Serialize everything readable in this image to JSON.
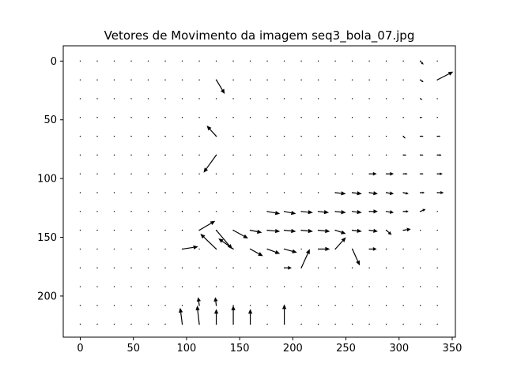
{
  "chart_data": {
    "type": "quiver",
    "title": "Vetores de Movimento da imagem seq3_bola_07.jpg",
    "xlabel": "",
    "ylabel": "",
    "xlim": [
      -16,
      353
    ],
    "ylim": [
      235,
      -13
    ],
    "y_inverted": true,
    "xticks": [
      0,
      50,
      100,
      150,
      200,
      250,
      300,
      350
    ],
    "yticks": [
      0,
      50,
      100,
      150,
      200
    ],
    "grid": false,
    "legend": "none",
    "colors": {
      "arrow": "#000000",
      "dot": "#000000",
      "axes": "#000000"
    },
    "grid_points": {
      "x_start": 0,
      "x_step": 16,
      "x_count": 22,
      "y_start": 0,
      "y_step": 16,
      "y_count": 15
    },
    "vectors": [
      {
        "x": 128,
        "y": 16,
        "u": 8,
        "v": 12
      },
      {
        "x": 128,
        "y": 64,
        "u": -9,
        "v": -9
      },
      {
        "x": 128,
        "y": 80,
        "u": -12,
        "v": 15
      },
      {
        "x": 96,
        "y": 160,
        "u": 15,
        "v": -2
      },
      {
        "x": 112,
        "y": 144,
        "u": 15,
        "v": -8
      },
      {
        "x": 128,
        "y": 160,
        "u": -15,
        "v": -13
      },
      {
        "x": 128,
        "y": 144,
        "u": 15,
        "v": 16
      },
      {
        "x": 144,
        "y": 160,
        "u": -14,
        "v": -9
      },
      {
        "x": 144,
        "y": 144,
        "u": 14,
        "v": 7
      },
      {
        "x": 160,
        "y": 144,
        "u": 11,
        "v": 2
      },
      {
        "x": 160,
        "y": 160,
        "u": 12,
        "v": 6
      },
      {
        "x": 176,
        "y": 128,
        "u": 12,
        "v": 2
      },
      {
        "x": 176,
        "y": 144,
        "u": 12,
        "v": 1
      },
      {
        "x": 176,
        "y": 160,
        "u": 12,
        "v": 4
      },
      {
        "x": 192,
        "y": 128,
        "u": 11,
        "v": 2
      },
      {
        "x": 192,
        "y": 144,
        "u": 11,
        "v": 1
      },
      {
        "x": 192,
        "y": 160,
        "u": 12,
        "v": 3
      },
      {
        "x": 192,
        "y": 176,
        "u": 7,
        "v": 0
      },
      {
        "x": 208,
        "y": 128,
        "u": 11,
        "v": 1
      },
      {
        "x": 208,
        "y": 144,
        "u": 11,
        "v": 1
      },
      {
        "x": 208,
        "y": 176,
        "u": 8,
        "v": -16
      },
      {
        "x": 224,
        "y": 128,
        "u": 10,
        "v": 1
      },
      {
        "x": 224,
        "y": 144,
        "u": 11,
        "v": 1
      },
      {
        "x": 224,
        "y": 160,
        "u": 11,
        "v": 0
      },
      {
        "x": 240,
        "y": 112,
        "u": 10,
        "v": 1
      },
      {
        "x": 240,
        "y": 128,
        "u": 10,
        "v": 1
      },
      {
        "x": 240,
        "y": 144,
        "u": 10,
        "v": 3
      },
      {
        "x": 240,
        "y": 160,
        "u": 10,
        "v": -10
      },
      {
        "x": 256,
        "y": 112,
        "u": 9,
        "v": 1
      },
      {
        "x": 256,
        "y": 128,
        "u": 9,
        "v": 1
      },
      {
        "x": 256,
        "y": 144,
        "u": 9,
        "v": 1
      },
      {
        "x": 256,
        "y": 160,
        "u": 7,
        "v": 14
      },
      {
        "x": 272,
        "y": 96,
        "u": 7,
        "v": 0
      },
      {
        "x": 272,
        "y": 112,
        "u": 8,
        "v": 1
      },
      {
        "x": 272,
        "y": 128,
        "u": 8,
        "v": 0
      },
      {
        "x": 272,
        "y": 144,
        "u": 8,
        "v": 1
      },
      {
        "x": 272,
        "y": 160,
        "u": 7,
        "v": 0
      },
      {
        "x": 288,
        "y": 96,
        "u": 7,
        "v": 0
      },
      {
        "x": 288,
        "y": 112,
        "u": 7,
        "v": 1
      },
      {
        "x": 288,
        "y": 128,
        "u": 7,
        "v": 1
      },
      {
        "x": 288,
        "y": 144,
        "u": 5,
        "v": 4
      },
      {
        "x": 304,
        "y": 64,
        "u": 2,
        "v": 2
      },
      {
        "x": 304,
        "y": 80,
        "u": 3,
        "v": 0
      },
      {
        "x": 304,
        "y": 96,
        "u": 4,
        "v": 0
      },
      {
        "x": 304,
        "y": 112,
        "u": 5,
        "v": 1
      },
      {
        "x": 304,
        "y": 128,
        "u": 5,
        "v": 0
      },
      {
        "x": 304,
        "y": 144,
        "u": 7,
        "v": -1
      },
      {
        "x": 320,
        "y": 0,
        "u": 3,
        "v": 3
      },
      {
        "x": 320,
        "y": 16,
        "u": 3,
        "v": 2
      },
      {
        "x": 320,
        "y": 32,
        "u": 2,
        "v": 1
      },
      {
        "x": 320,
        "y": 48,
        "u": 2,
        "v": 0
      },
      {
        "x": 320,
        "y": 64,
        "u": 3,
        "v": 0
      },
      {
        "x": 320,
        "y": 80,
        "u": 3,
        "v": 0
      },
      {
        "x": 320,
        "y": 96,
        "u": 3,
        "v": 0
      },
      {
        "x": 320,
        "y": 112,
        "u": 4,
        "v": 0
      },
      {
        "x": 320,
        "y": 128,
        "u": 5,
        "v": -2
      },
      {
        "x": 336,
        "y": 16,
        "u": 15,
        "v": -7
      },
      {
        "x": 336,
        "y": 64,
        "u": 3,
        "v": 0
      },
      {
        "x": 336,
        "y": 80,
        "u": 4,
        "v": 0
      },
      {
        "x": 336,
        "y": 96,
        "u": 5,
        "v": 0
      },
      {
        "x": 336,
        "y": 112,
        "u": 6,
        "v": 0
      },
      {
        "x": 96,
        "y": 224,
        "u": -2,
        "v": -14
      },
      {
        "x": 112,
        "y": 224,
        "u": -2,
        "v": -16
      },
      {
        "x": 112,
        "y": 208,
        "u": -1,
        "v": -7
      },
      {
        "x": 128,
        "y": 224,
        "u": 0,
        "v": -13
      },
      {
        "x": 128,
        "y": 208,
        "u": -1,
        "v": -7
      },
      {
        "x": 144,
        "y": 224,
        "u": 0,
        "v": -16
      },
      {
        "x": 160,
        "y": 224,
        "u": 0,
        "v": -13
      },
      {
        "x": 192,
        "y": 224,
        "u": 0,
        "v": -17
      }
    ]
  }
}
